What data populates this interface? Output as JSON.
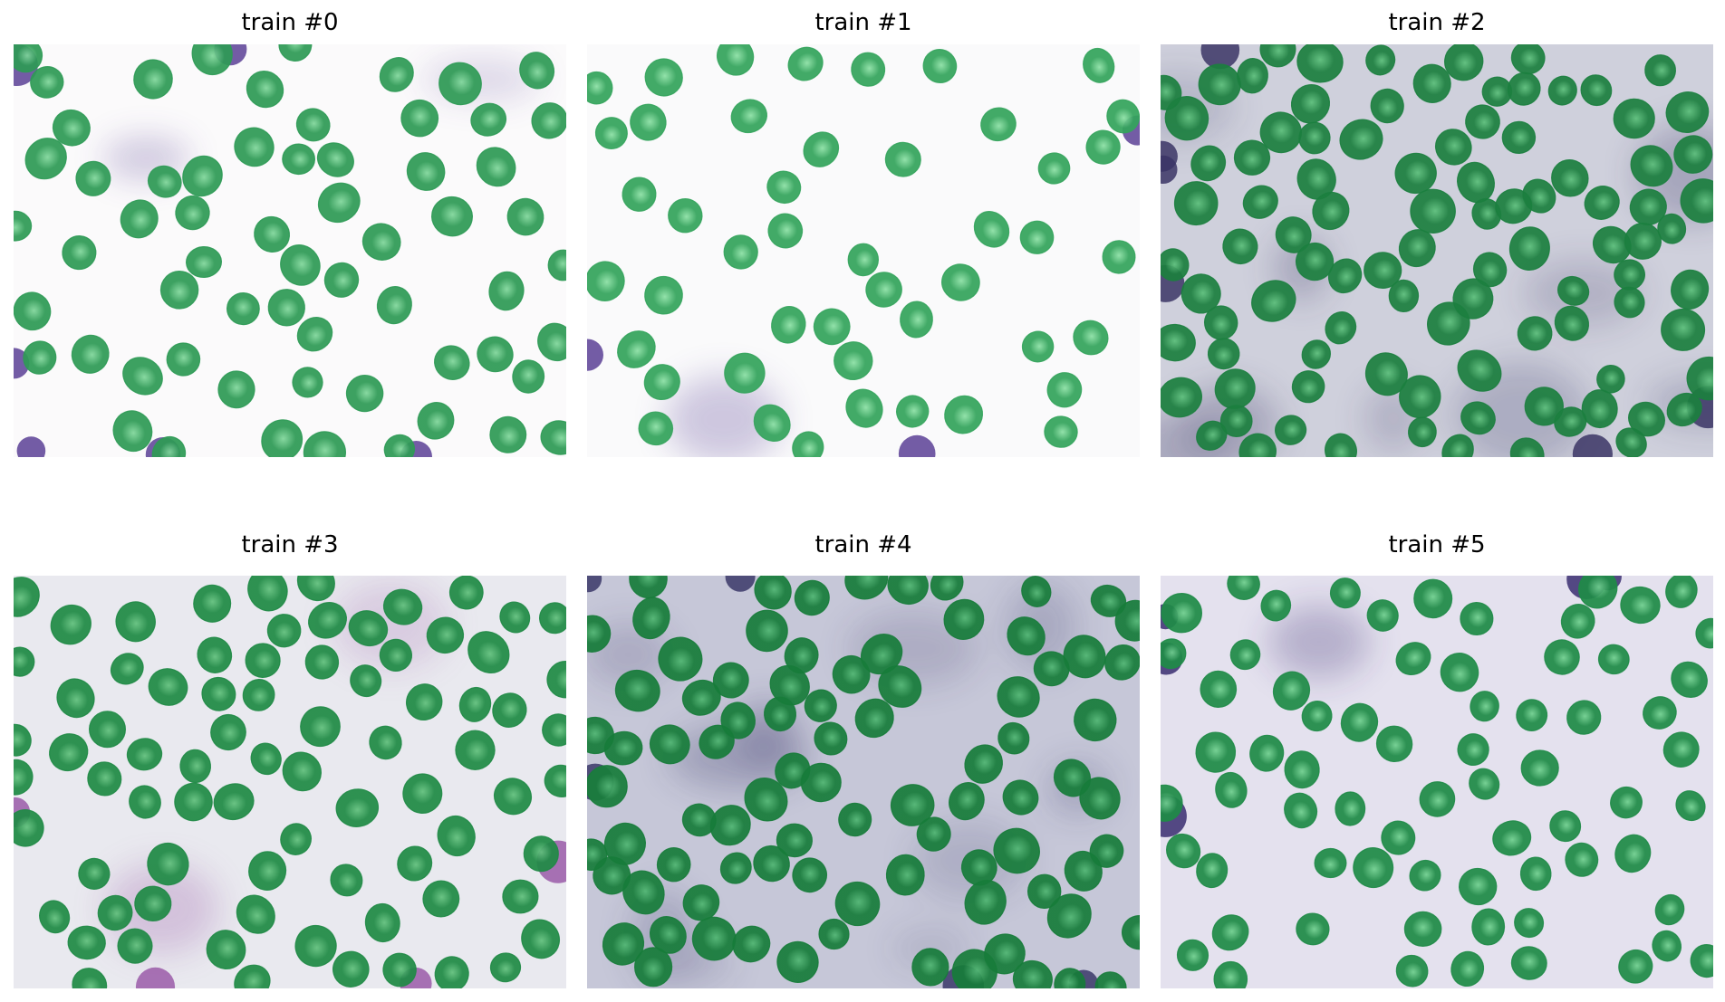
{
  "panels": [
    {
      "title": "train #0",
      "background": "#fbfafb",
      "cell_color": "#2e9a55",
      "cell_light": "#7fd69a",
      "stain_color": "#5a3f95"
    },
    {
      "title": "train #1",
      "background": "#fafafb",
      "cell_color": "#34a45c",
      "cell_light": "#8be0a4",
      "stain_color": "#5a3f95"
    },
    {
      "title": "train #2",
      "background": "#cfd0dc",
      "cell_color": "#1c7f3f",
      "cell_light": "#5bbf7a",
      "stain_color": "#3b3565"
    },
    {
      "title": "train #3",
      "background": "#e9e9ef",
      "cell_color": "#1f8a45",
      "cell_light": "#60c07c",
      "stain_color": "#9a5aa8"
    },
    {
      "title": "train #4",
      "background": "#c6c7d8",
      "cell_color": "#177c3a",
      "cell_light": "#4fb671",
      "stain_color": "#3a3768"
    },
    {
      "title": "train #5",
      "background": "#e4e1ee",
      "cell_color": "#1f8b47",
      "cell_light": "#6fd08e",
      "stain_color": "#3a2d70"
    }
  ]
}
